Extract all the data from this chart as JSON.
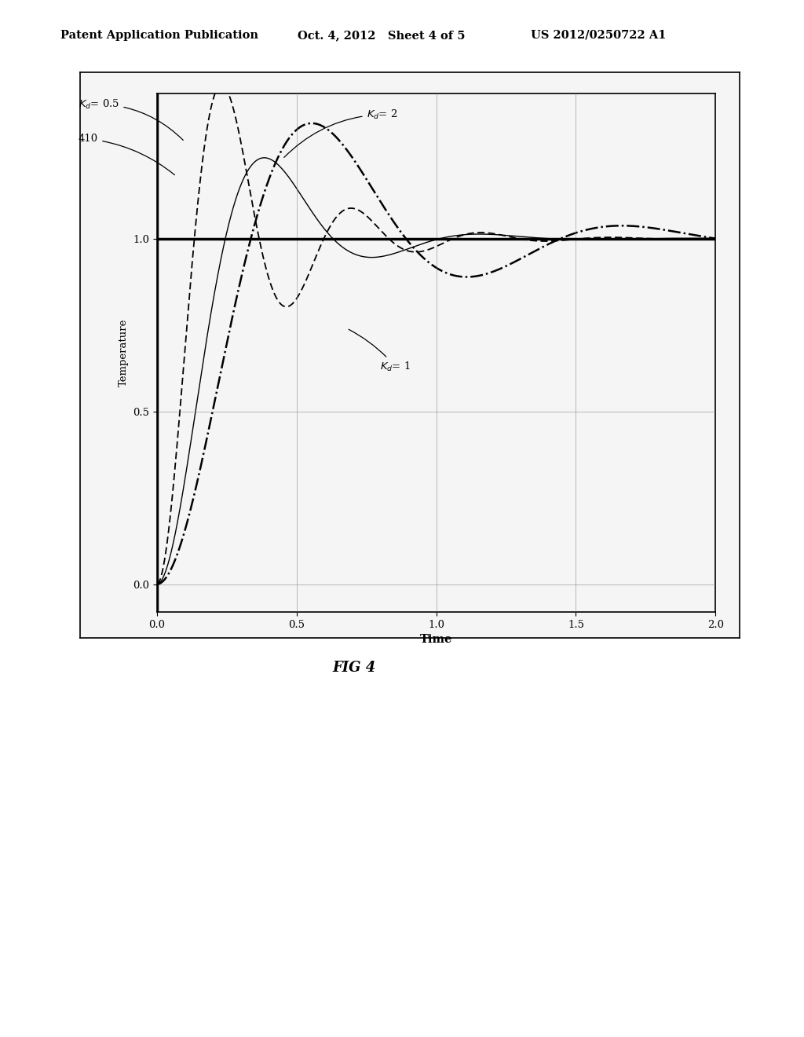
{
  "header_left": "Patent Application Publication",
  "header_mid": "Oct. 4, 2012   Sheet 4 of 5",
  "header_right": "US 2012/0250722 A1",
  "fig_caption": "FIG 4",
  "xlabel": "Time",
  "ylabel": "Temperature",
  "xlim": [
    0.0,
    2.0
  ],
  "ylim": [
    -0.08,
    1.42
  ],
  "yticks": [
    0.0,
    0.5,
    1.0
  ],
  "xticks": [
    0.0,
    0.5,
    1.0,
    1.5,
    2.0
  ],
  "background_color": "#f5f5f5",
  "line_color": "#000000",
  "grid_color": "#999999"
}
